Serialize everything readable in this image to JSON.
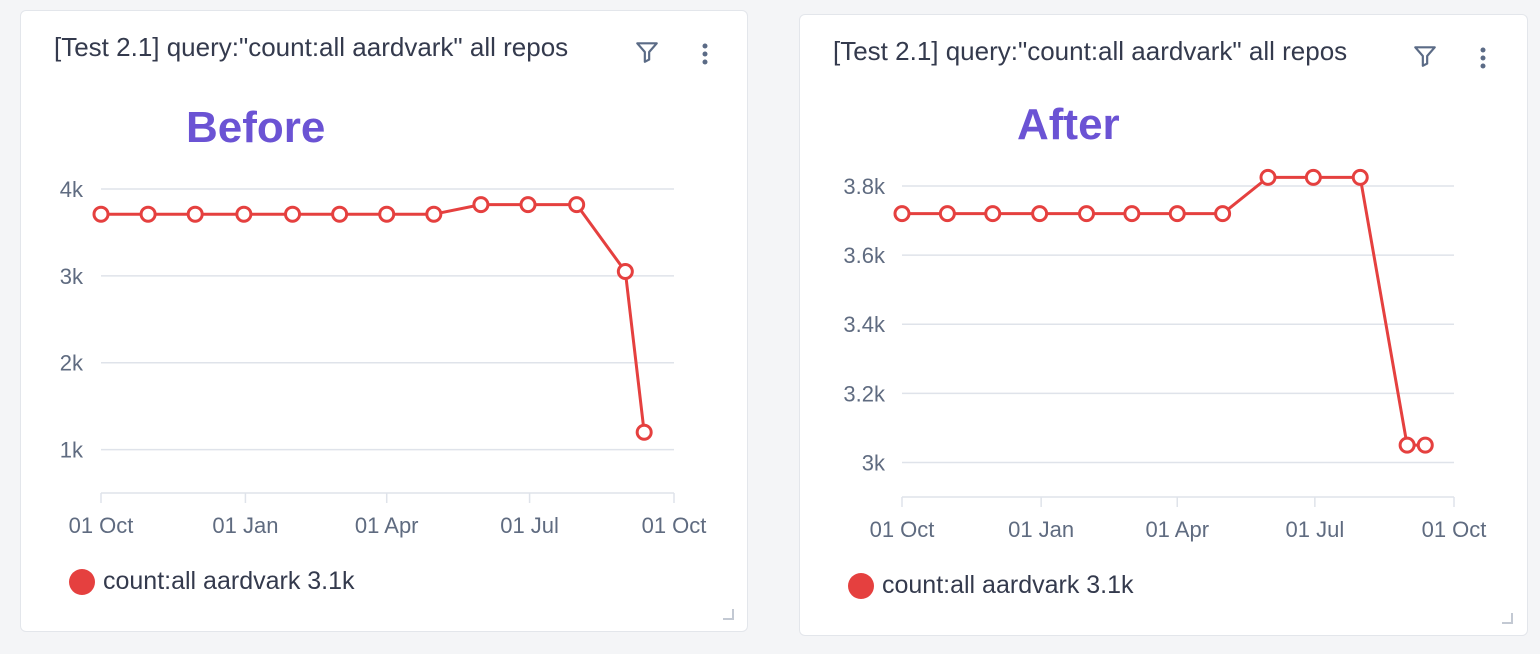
{
  "colors": {
    "series": "#e5403f",
    "grid": "#dfe3ea",
    "axis_text": "#5f6b80",
    "annotation": "#6b53d4",
    "title": "#343a4d"
  },
  "icons": {
    "filter": "filter-icon",
    "more": "more-vertical-icon",
    "resize": "resize-handle-icon"
  },
  "cards": [
    {
      "title": "[Test 2.1] query:\"count:all aardvark\" all repos",
      "annotation": "Before",
      "legend": "count:all aardvark 3.1k"
    },
    {
      "title": "[Test 2.1] query:\"count:all aardvark\" all repos",
      "annotation": "After",
      "legend": "count:all aardvark 3.1k"
    }
  ],
  "chart_data": [
    {
      "type": "line",
      "series": [
        {
          "name": "count:all aardvark",
          "x": [
            "2022-10-01",
            "2022-10-31",
            "2022-11-30",
            "2022-12-31",
            "2023-01-31",
            "2023-03-02",
            "2023-04-01",
            "2023-05-01",
            "2023-05-31",
            "2023-06-30",
            "2023-07-31",
            "2023-08-31",
            "2023-09-12"
          ],
          "values": [
            3710,
            3710,
            3710,
            3710,
            3710,
            3710,
            3710,
            3710,
            3820,
            3820,
            3820,
            3050,
            1200
          ]
        }
      ],
      "x_ticks": [
        {
          "date": "2022-10-01",
          "label": "01 Oct"
        },
        {
          "date": "2023-01-01",
          "label": "01 Jan"
        },
        {
          "date": "2023-04-01",
          "label": "01 Apr"
        },
        {
          "date": "2023-07-01",
          "label": "01 Jul"
        },
        {
          "date": "2023-10-01",
          "label": "01 Oct"
        }
      ],
      "y_ticks": [
        {
          "value": 1000,
          "label": "1k"
        },
        {
          "value": 2000,
          "label": "2k"
        },
        {
          "value": 3000,
          "label": "3k"
        },
        {
          "value": 4000,
          "label": "4k"
        }
      ],
      "xlim": [
        "2022-10-01",
        "2023-10-01"
      ],
      "ylim": [
        500,
        4000
      ],
      "grid": true,
      "legend_placement": "bottom-left"
    },
    {
      "type": "line",
      "series": [
        {
          "name": "count:all aardvark",
          "x": [
            "2022-10-01",
            "2022-10-31",
            "2022-11-30",
            "2022-12-31",
            "2023-01-31",
            "2023-03-02",
            "2023-04-01",
            "2023-05-01",
            "2023-05-31",
            "2023-06-30",
            "2023-07-31",
            "2023-08-31",
            "2023-09-12"
          ],
          "values": [
            3720,
            3720,
            3720,
            3720,
            3720,
            3720,
            3720,
            3720,
            3825,
            3825,
            3825,
            3050,
            3050
          ]
        }
      ],
      "x_ticks": [
        {
          "date": "2022-10-01",
          "label": "01 Oct"
        },
        {
          "date": "2023-01-01",
          "label": "01 Jan"
        },
        {
          "date": "2023-04-01",
          "label": "01 Apr"
        },
        {
          "date": "2023-07-01",
          "label": "01 Jul"
        },
        {
          "date": "2023-10-01",
          "label": "01 Oct"
        }
      ],
      "y_ticks": [
        {
          "value": 3000,
          "label": "3k"
        },
        {
          "value": 3200,
          "label": "3.2k"
        },
        {
          "value": 3400,
          "label": "3.4k"
        },
        {
          "value": 3600,
          "label": "3.6k"
        },
        {
          "value": 3800,
          "label": "3.8k"
        }
      ],
      "xlim": [
        "2022-10-01",
        "2023-10-01"
      ],
      "ylim": [
        2900,
        3800
      ],
      "grid": true,
      "legend_placement": "bottom-left"
    }
  ]
}
